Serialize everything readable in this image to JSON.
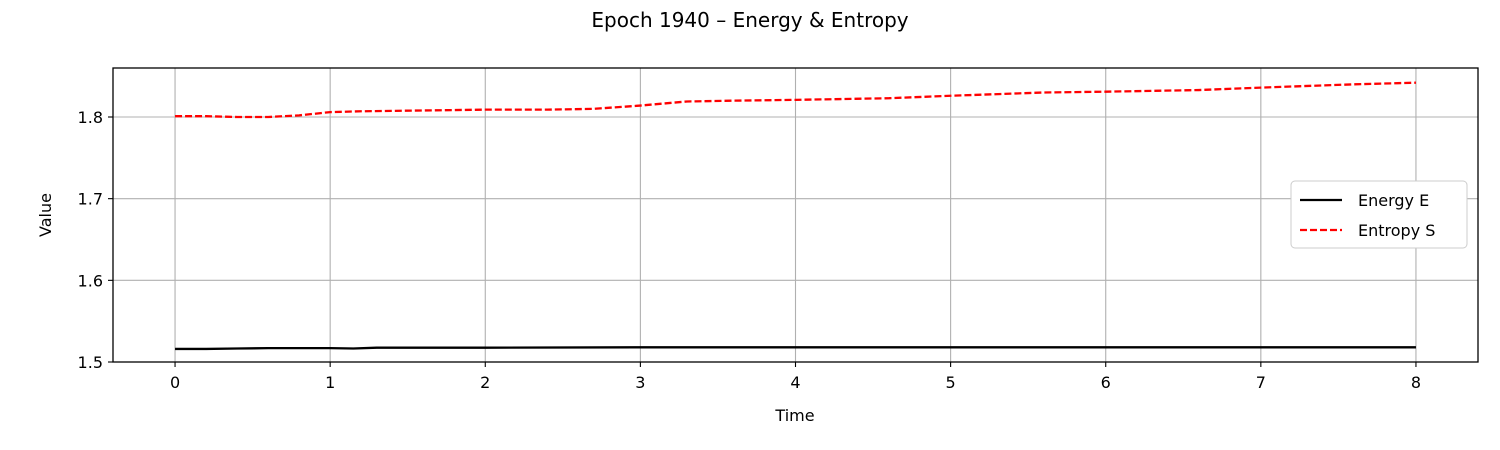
{
  "chart_data": {
    "type": "line",
    "title": "Epoch 1940 – Energy & Entropy",
    "xlabel": "Time",
    "ylabel": "Value",
    "xlim": [
      -0.4,
      8.4
    ],
    "ylim": [
      1.5,
      1.86
    ],
    "xticks": [
      0,
      1,
      2,
      3,
      4,
      5,
      6,
      7,
      8
    ],
    "yticks": [
      1.5,
      1.6,
      1.7,
      1.8
    ],
    "xtick_labels": [
      "0",
      "1",
      "2",
      "3",
      "4",
      "5",
      "6",
      "7",
      "8"
    ],
    "ytick_labels": [
      "1.5",
      "1.6",
      "1.7",
      "1.8"
    ],
    "grid": true,
    "legend_position": "center-right",
    "series": [
      {
        "name": "Energy E",
        "color": "#000000",
        "style": "solid",
        "x": [
          0,
          0.2,
          0.4,
          0.6,
          0.8,
          1.0,
          1.15,
          1.3,
          1.6,
          2.0,
          3.0,
          4.0,
          5.0,
          6.0,
          7.0,
          8.0
        ],
        "y": [
          1.516,
          1.516,
          1.5165,
          1.517,
          1.517,
          1.517,
          1.5165,
          1.5175,
          1.5175,
          1.5175,
          1.518,
          1.518,
          1.518,
          1.518,
          1.518,
          1.518
        ]
      },
      {
        "name": "Entropy S",
        "color": "#ff0000",
        "style": "dashed",
        "x": [
          0,
          0.2,
          0.4,
          0.6,
          0.8,
          1.0,
          1.2,
          1.6,
          2.0,
          2.4,
          2.7,
          3.0,
          3.3,
          3.6,
          4.0,
          4.6,
          5.0,
          5.6,
          6.0,
          6.6,
          7.0,
          7.6,
          8.0
        ],
        "y": [
          1.801,
          1.801,
          1.8,
          1.8,
          1.802,
          1.806,
          1.807,
          1.808,
          1.809,
          1.809,
          1.81,
          1.814,
          1.819,
          1.82,
          1.821,
          1.823,
          1.826,
          1.83,
          1.831,
          1.833,
          1.836,
          1.84,
          1.842
        ]
      }
    ]
  }
}
